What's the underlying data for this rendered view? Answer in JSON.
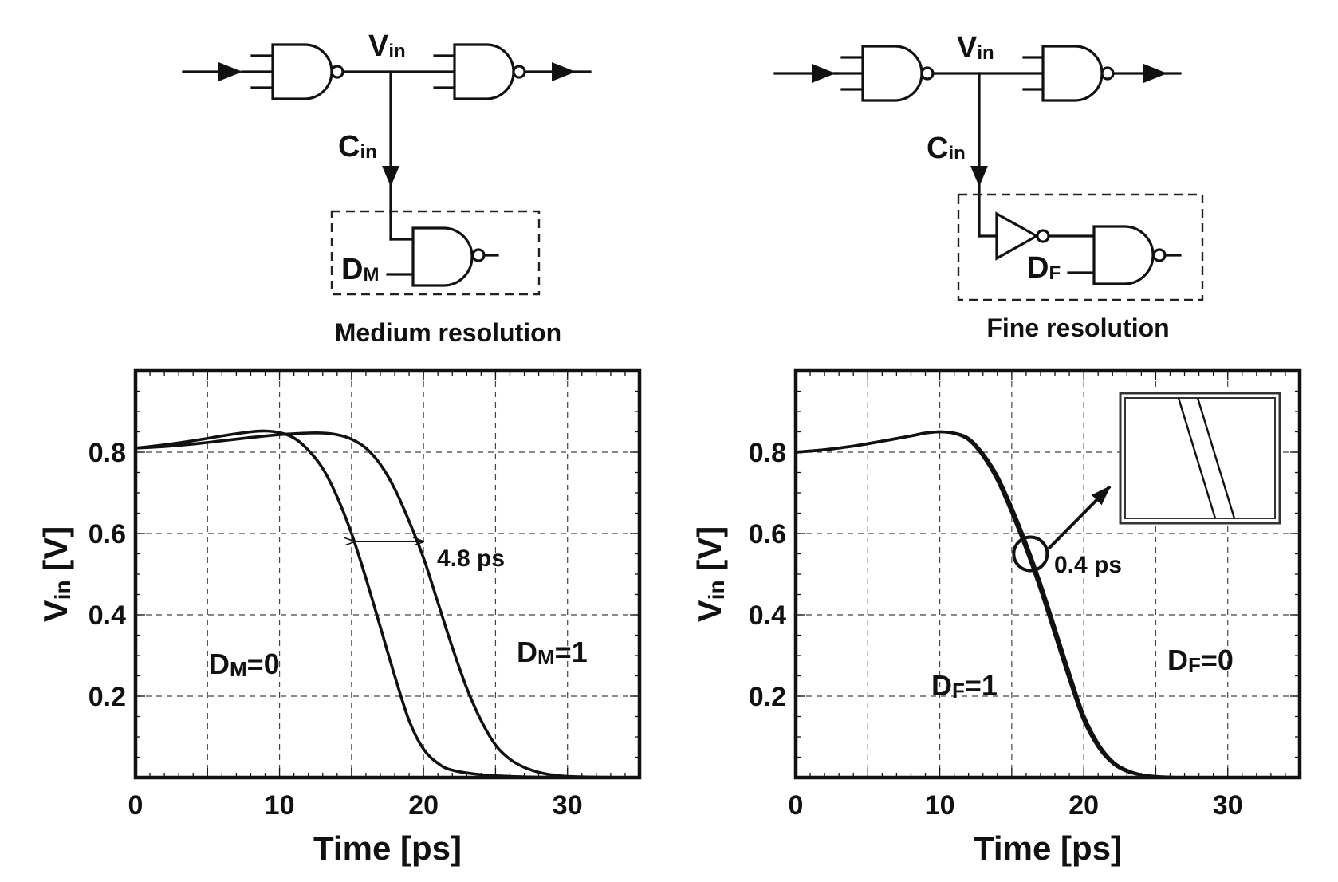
{
  "circuits": {
    "medium": {
      "title": "Medium resolution",
      "vin_label": "V",
      "vin_sub": "in",
      "cin_label": "C",
      "cin_sub": "in",
      "control_label": "D",
      "control_sub": "M"
    },
    "fine": {
      "title": "Fine resolution",
      "vin_label": "V",
      "vin_sub": "in",
      "cin_label": "C",
      "cin_sub": "in",
      "control_label": "D",
      "control_sub": "F"
    }
  },
  "chart_data": [
    {
      "type": "line",
      "xlabel": "Time [ps]",
      "ylabel": "V",
      "ylabel_sub": "in",
      "ylabel_unit": " [V]",
      "xlim": [
        0,
        35
      ],
      "ylim": [
        0,
        1.0
      ],
      "xticks": [
        0,
        10,
        20,
        30
      ],
      "xtick_labels": [
        "0",
        "10",
        "20",
        "30"
      ],
      "yticks": [
        0.2,
        0.4,
        0.6,
        0.8
      ],
      "ytick_labels": [
        "0.2",
        "0.4",
        "0.6",
        "0.8"
      ],
      "grid": true,
      "series": [
        {
          "name": "DM=0",
          "label_main": "D",
          "label_sub": "M",
          "label_eq": "=0",
          "x": [
            0,
            2,
            4,
            6,
            8,
            9,
            10,
            11,
            12,
            13,
            14,
            15,
            16,
            17,
            18,
            19,
            20,
            21,
            22,
            24,
            26,
            28,
            30,
            32,
            35
          ],
          "y": [
            0.81,
            0.818,
            0.828,
            0.84,
            0.85,
            0.852,
            0.848,
            0.835,
            0.805,
            0.76,
            0.69,
            0.6,
            0.49,
            0.37,
            0.25,
            0.14,
            0.07,
            0.035,
            0.018,
            0.007,
            0.003,
            0.001,
            0.0,
            0.0,
            0.0
          ]
        },
        {
          "name": "DM=1",
          "label_main": "D",
          "label_sub": "M",
          "label_eq": "=1",
          "x": [
            0,
            2,
            4,
            6,
            8,
            10,
            12,
            13,
            14,
            15,
            16,
            17,
            18,
            19,
            20,
            21,
            22,
            23,
            24,
            25,
            26,
            27,
            28,
            29,
            30,
            32,
            35
          ],
          "y": [
            0.81,
            0.814,
            0.82,
            0.828,
            0.836,
            0.843,
            0.847,
            0.847,
            0.843,
            0.832,
            0.81,
            0.77,
            0.71,
            0.63,
            0.54,
            0.43,
            0.32,
            0.22,
            0.14,
            0.08,
            0.045,
            0.025,
            0.013,
            0.006,
            0.003,
            0.001,
            0.0
          ]
        }
      ],
      "annotation": {
        "text": "4.8 ps",
        "x_from": 15.2,
        "x_to": 20.0,
        "y": 0.58
      }
    },
    {
      "type": "line",
      "xlabel": "Time [ps]",
      "ylabel": "V",
      "ylabel_sub": "in",
      "ylabel_unit": " [V]",
      "xlim": [
        0,
        35
      ],
      "ylim": [
        0,
        1.0
      ],
      "xticks": [
        0,
        10,
        20,
        30
      ],
      "xtick_labels": [
        "0",
        "10",
        "20",
        "30"
      ],
      "yticks": [
        0.2,
        0.4,
        0.6,
        0.8
      ],
      "ytick_labels": [
        "0.2",
        "0.4",
        "0.6",
        "0.8"
      ],
      "grid": true,
      "series": [
        {
          "name": "DF=1",
          "label_main": "D",
          "label_sub": "F",
          "label_eq": "=1",
          "x": [
            0,
            2,
            4,
            6,
            8,
            9,
            10,
            11,
            12,
            13,
            14,
            15,
            16,
            17,
            18,
            19,
            20,
            21,
            22,
            23,
            24,
            25,
            27,
            30,
            35
          ],
          "y": [
            0.8,
            0.806,
            0.815,
            0.827,
            0.84,
            0.847,
            0.85,
            0.846,
            0.83,
            0.79,
            0.73,
            0.65,
            0.56,
            0.46,
            0.35,
            0.24,
            0.14,
            0.075,
            0.035,
            0.015,
            0.006,
            0.002,
            0.0,
            0.0,
            0.0
          ]
        },
        {
          "name": "DF=0",
          "label_main": "D",
          "label_sub": "F",
          "label_eq": "=0",
          "x": [
            0,
            2,
            4,
            6,
            8,
            9,
            10,
            11,
            12,
            13,
            14,
            15,
            16,
            17,
            18,
            19,
            20,
            21,
            22,
            23,
            24,
            25,
            27,
            30,
            35
          ],
          "y": [
            0.8,
            0.806,
            0.815,
            0.827,
            0.84,
            0.847,
            0.85,
            0.847,
            0.834,
            0.797,
            0.742,
            0.665,
            0.577,
            0.478,
            0.369,
            0.258,
            0.154,
            0.084,
            0.04,
            0.018,
            0.007,
            0.003,
            0.0,
            0.0,
            0.0
          ]
        }
      ],
      "annotation": {
        "text": "0.4 ps",
        "x_center": 16.3,
        "y": 0.55
      }
    }
  ]
}
